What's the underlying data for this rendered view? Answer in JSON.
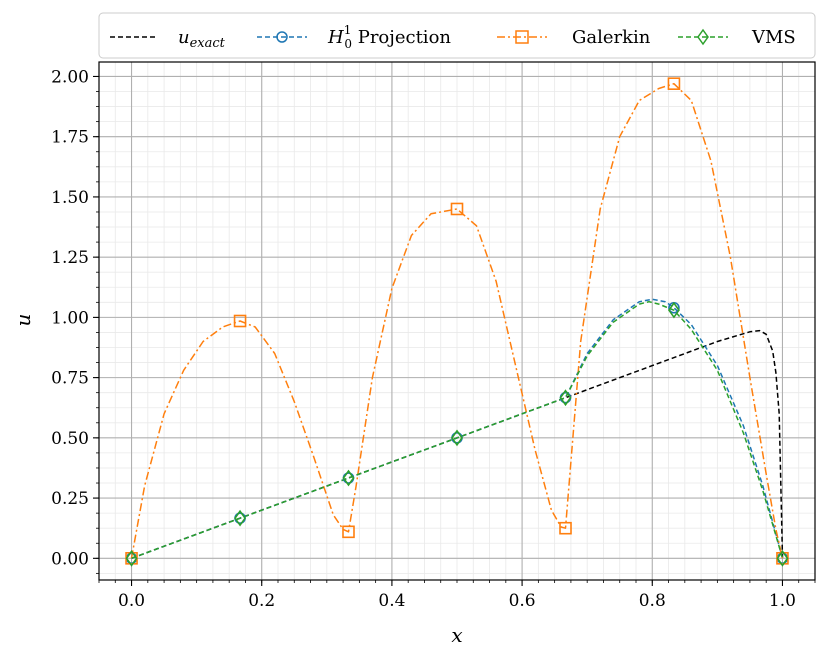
{
  "chart_data": {
    "type": "line",
    "xlabel": "x",
    "ylabel": "u",
    "xlim": [
      -0.05,
      1.05
    ],
    "ylim": [
      -0.09,
      2.06
    ],
    "x_ticks": [
      0.0,
      0.2,
      0.4,
      0.6,
      0.8,
      1.0
    ],
    "x_tick_labels": [
      "0.0",
      "0.2",
      "0.4",
      "0.6",
      "0.8",
      "1.0"
    ],
    "y_ticks": [
      0.0,
      0.25,
      0.5,
      0.75,
      1.0,
      1.25,
      1.5,
      1.75,
      2.0
    ],
    "y_tick_labels": [
      "0.00",
      "0.25",
      "0.50",
      "0.75",
      "1.00",
      "1.25",
      "1.50",
      "1.75",
      "2.00"
    ],
    "grid": true,
    "minor_grid": true,
    "legend_position": "top",
    "series": [
      {
        "name": "u_exact",
        "color": "#000000",
        "line_style": "dashed",
        "marker": "none",
        "x": [
          0.0,
          0.1,
          0.2,
          0.3,
          0.4,
          0.5,
          0.6,
          0.7,
          0.8,
          0.9,
          0.95,
          0.965,
          0.975,
          0.985,
          0.99,
          0.995,
          1.0
        ],
        "y": [
          0.0,
          0.1,
          0.2,
          0.3,
          0.4,
          0.5,
          0.6,
          0.7,
          0.8,
          0.9,
          0.94,
          0.945,
          0.93,
          0.86,
          0.77,
          0.6,
          0.0
        ]
      },
      {
        "name": "H_0^1 Projection",
        "color": "#1f77b4",
        "line_style": "dashed",
        "marker": "circle",
        "x": [
          0.0,
          0.1667,
          0.3333,
          0.5,
          0.6667,
          0.7,
          0.74,
          0.78,
          0.8,
          0.82,
          0.8333,
          0.86,
          0.9,
          0.94,
          0.97,
          1.0
        ],
        "y": [
          0.0,
          0.1667,
          0.3333,
          0.5,
          0.6667,
          0.85,
          0.99,
          1.065,
          1.075,
          1.065,
          1.04,
          0.97,
          0.8,
          0.55,
          0.3,
          0.0
        ],
        "marker_x": [
          0.0,
          0.1667,
          0.3333,
          0.5,
          0.6667,
          0.8333,
          1.0
        ],
        "marker_y": [
          0.0,
          0.1667,
          0.3333,
          0.5,
          0.6667,
          1.04,
          0.0
        ]
      },
      {
        "name": "Galerkin",
        "color": "#ff7f0e",
        "line_style": "dashdot",
        "marker": "square",
        "x": [
          0.0,
          0.02,
          0.05,
          0.08,
          0.11,
          0.14,
          0.1667,
          0.19,
          0.22,
          0.25,
          0.28,
          0.31,
          0.325,
          0.3333,
          0.345,
          0.37,
          0.4,
          0.43,
          0.46,
          0.5,
          0.53,
          0.56,
          0.59,
          0.62,
          0.645,
          0.66,
          0.6667,
          0.675,
          0.69,
          0.72,
          0.75,
          0.78,
          0.81,
          0.8333,
          0.86,
          0.89,
          0.92,
          0.95,
          0.975,
          0.99,
          1.0
        ],
        "y": [
          0.0,
          0.3,
          0.6,
          0.78,
          0.9,
          0.96,
          0.985,
          0.96,
          0.85,
          0.65,
          0.42,
          0.18,
          0.12,
          0.11,
          0.3,
          0.75,
          1.12,
          1.34,
          1.43,
          1.45,
          1.38,
          1.15,
          0.8,
          0.45,
          0.2,
          0.13,
          0.125,
          0.4,
          0.9,
          1.45,
          1.75,
          1.9,
          1.95,
          1.97,
          1.9,
          1.65,
          1.25,
          0.75,
          0.35,
          0.12,
          0.0
        ],
        "marker_x": [
          0.0,
          0.1667,
          0.3333,
          0.5,
          0.6667,
          0.8333,
          1.0
        ],
        "marker_y": [
          0.0,
          0.985,
          0.11,
          1.45,
          0.125,
          1.97,
          0.0
        ]
      },
      {
        "name": "VMS",
        "color": "#2ca02c",
        "line_style": "dashed",
        "marker": "diamond",
        "x": [
          0.0,
          0.1667,
          0.3333,
          0.5,
          0.6667,
          0.7,
          0.74,
          0.78,
          0.795,
          0.81,
          0.8333,
          0.86,
          0.9,
          0.94,
          0.97,
          1.0
        ],
        "y": [
          0.0,
          0.1667,
          0.3333,
          0.5,
          0.6667,
          0.84,
          0.98,
          1.055,
          1.065,
          1.055,
          1.03,
          0.95,
          0.78,
          0.52,
          0.28,
          0.0
        ],
        "marker_x": [
          0.0,
          0.1667,
          0.3333,
          0.5,
          0.6667,
          0.8333,
          1.0
        ],
        "marker_y": [
          0.0,
          0.1667,
          0.3333,
          0.5,
          0.6667,
          1.03,
          0.0
        ]
      }
    ]
  },
  "legend": {
    "items": [
      {
        "label_main": "u",
        "label_sub": "exact",
        "label_sup": "",
        "label_rest": ""
      },
      {
        "label_main": "H",
        "label_sub": "0",
        "label_sup": "1",
        "label_rest": " Projection"
      },
      {
        "label_main": "Galerkin",
        "label_sub": "",
        "label_sup": "",
        "label_rest": ""
      },
      {
        "label_main": "VMS",
        "label_sub": "",
        "label_sup": "",
        "label_rest": ""
      }
    ]
  }
}
